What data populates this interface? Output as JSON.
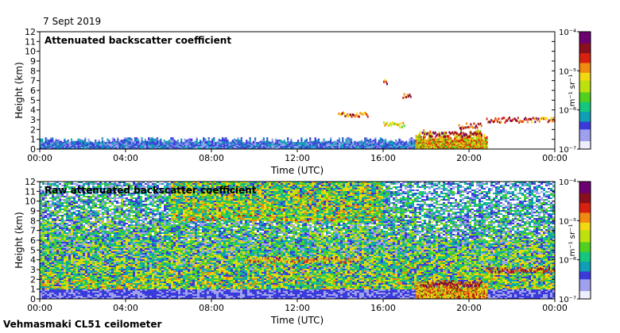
{
  "header": {
    "date": "7 Sept 2019"
  },
  "footer": {
    "instrument": "Vehmasmaki CL51 ceilometer"
  },
  "colors": {
    "colormap": [
      "#eeeeff",
      "#9fa0ee",
      "#3b3bdb",
      "#0f9fb6",
      "#14c77c",
      "#4fd11e",
      "#bde00f",
      "#f2d810",
      "#f08a10",
      "#d8220f",
      "#8a0f1c",
      "#6d0070"
    ]
  },
  "chart_data": [
    {
      "type": "heatmap",
      "title": "Attenuated backscatter coefficient",
      "xlabel": "Time (UTC)",
      "ylabel": "Height (km)",
      "x_ticks": [
        "00:00",
        "04:00",
        "08:00",
        "12:00",
        "16:00",
        "20:00",
        "00:00"
      ],
      "y_ticks": [
        "0",
        "1",
        "2",
        "3",
        "4",
        "5",
        "6",
        "7",
        "8",
        "9",
        "10",
        "11",
        "12"
      ],
      "xlim_hours": [
        0,
        24
      ],
      "ylim_km": [
        0,
        12
      ],
      "colorbar": {
        "label": "m⁻¹ sr⁻¹",
        "ticks": [
          "10⁻⁴",
          "10⁻⁵",
          "10⁻⁶",
          "10⁻⁷"
        ],
        "range": [
          1e-07,
          0.0001
        ],
        "scale": "log"
      },
      "features": [
        {
          "kind": "boundary_layer",
          "from_h": 0,
          "to_h": 17.5,
          "top_km": 1.0,
          "intensity": 0.22
        },
        {
          "kind": "low_cloud",
          "from_h": 17.5,
          "to_h": 20.8,
          "base_km": 0,
          "top_km": 1.8,
          "intensity": 0.55
        },
        {
          "kind": "cloud_layer",
          "from_h": 17.8,
          "to_h": 20.6,
          "height_km": 1.5,
          "intensity": 0.85
        },
        {
          "kind": "cloud_layer",
          "from_h": 13.9,
          "to_h": 15.3,
          "height_km": 3.6,
          "intensity": 0.75
        },
        {
          "kind": "cloud_layer",
          "from_h": 16.0,
          "to_h": 16.2,
          "height_km": 6.9,
          "intensity": 0.8
        },
        {
          "kind": "cloud_layer",
          "from_h": 16.9,
          "to_h": 17.3,
          "height_km": 5.4,
          "intensity": 0.8
        },
        {
          "kind": "cloud_layer",
          "from_h": 16.0,
          "to_h": 17.0,
          "height_km": 2.5,
          "intensity": 0.6
        },
        {
          "kind": "cloud_layer",
          "from_h": 20.8,
          "to_h": 24.0,
          "height_km": 3.0,
          "intensity": 0.8
        },
        {
          "kind": "cloud_layer",
          "from_h": 19.5,
          "to_h": 20.6,
          "height_km": 2.4,
          "intensity": 0.8
        }
      ]
    },
    {
      "type": "heatmap",
      "title": "Raw attenuated backscatter coefficient",
      "xlabel": "Time (UTC)",
      "ylabel": "Height (km)",
      "x_ticks": [
        "00:00",
        "04:00",
        "08:00",
        "12:00",
        "16:00",
        "20:00",
        "00:00"
      ],
      "y_ticks": [
        "0",
        "1",
        "2",
        "3",
        "4",
        "5",
        "6",
        "7",
        "8",
        "9",
        "10",
        "11",
        "12"
      ],
      "xlim_hours": [
        0,
        24
      ],
      "ylim_km": [
        0,
        12
      ],
      "colorbar": {
        "label": "m⁻¹ sr⁻¹",
        "ticks": [
          "10⁻⁴",
          "10⁻⁵",
          "10⁻⁶",
          "10⁻⁷"
        ],
        "range": [
          1e-07,
          0.0001
        ],
        "scale": "log"
      },
      "features": [
        {
          "kind": "noise_field",
          "from_h": 0,
          "to_h": 24,
          "intensity": 0.5
        },
        {
          "kind": "low_cloud",
          "from_h": 17.5,
          "to_h": 20.8,
          "base_km": 0,
          "top_km": 1.8,
          "intensity": 0.6
        },
        {
          "kind": "cloud_layer",
          "from_h": 17.8,
          "to_h": 20.6,
          "height_km": 1.5,
          "intensity": 0.9
        },
        {
          "kind": "cloud_layer",
          "from_h": 9.5,
          "to_h": 15.0,
          "height_km": 4.0,
          "intensity": 0.7
        },
        {
          "kind": "cloud_layer",
          "from_h": 20.8,
          "to_h": 24.0,
          "height_km": 3.0,
          "intensity": 0.8
        }
      ]
    }
  ]
}
